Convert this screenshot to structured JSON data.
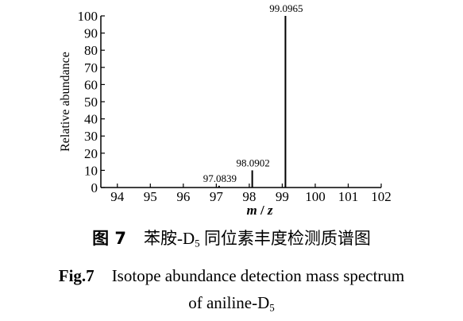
{
  "chart_data": {
    "type": "bar",
    "ylabel": "Relative abundance",
    "xlabel": "m/z",
    "xlim": [
      93.5,
      102
    ],
    "ylim": [
      0,
      100
    ],
    "x_ticks": [
      94,
      95,
      96,
      97,
      98,
      99,
      100,
      101,
      102
    ],
    "y_ticks": [
      0,
      10,
      20,
      30,
      40,
      50,
      60,
      70,
      80,
      90,
      100
    ],
    "peaks": [
      {
        "mz": 97.0839,
        "abundance": 1,
        "label": "97.0839"
      },
      {
        "mz": 98.0902,
        "abundance": 10,
        "label": "98.0902"
      },
      {
        "mz": 99.0965,
        "abundance": 100,
        "label": "99.0965"
      }
    ]
  },
  "caption": {
    "cn_fig": "图 7",
    "cn_title_pre": "苯胺-D",
    "cn_title_sub": "5",
    "cn_title_post": " 同位素丰度检测质谱图",
    "en_fig": "Fig.7",
    "en_line1": "Isotope abundance detection mass spectrum",
    "en_line2_pre": "of aniline-D",
    "en_line2_sub": "5"
  }
}
